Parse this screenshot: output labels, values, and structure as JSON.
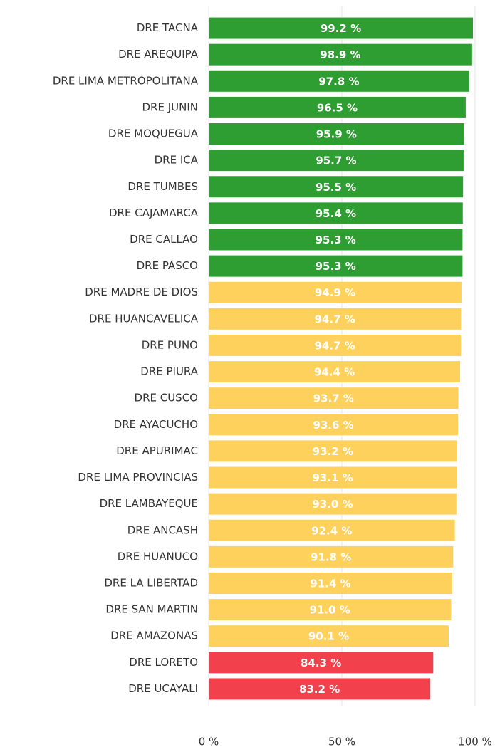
{
  "chart_data": {
    "type": "barh",
    "categories": [
      "DRE TACNA",
      "DRE AREQUIPA",
      "DRE LIMA METROPOLITANA",
      "DRE JUNIN",
      "DRE MOQUEGUA",
      "DRE ICA",
      "DRE TUMBES",
      "DRE CAJAMARCA",
      "DRE CALLAO",
      "DRE PASCO",
      "DRE MADRE DE DIOS",
      "DRE HUANCAVELICA",
      "DRE PUNO",
      "DRE PIURA",
      "DRE CUSCO",
      "DRE AYACUCHO",
      "DRE APURIMAC",
      "DRE LIMA PROVINCIAS",
      "DRE LAMBAYEQUE",
      "DRE ANCASH",
      "DRE HUANUCO",
      "DRE LA LIBERTAD",
      "DRE SAN MARTIN",
      "DRE AMAZONAS",
      "DRE LORETO",
      "DRE UCAYALI"
    ],
    "values": [
      99.2,
      98.9,
      97.8,
      96.5,
      95.9,
      95.7,
      95.5,
      95.4,
      95.3,
      95.3,
      94.9,
      94.7,
      94.7,
      94.4,
      93.7,
      93.6,
      93.2,
      93.1,
      93.0,
      92.4,
      91.8,
      91.4,
      91.0,
      90.1,
      84.3,
      83.2
    ],
    "value_labels": [
      "99.2 %",
      "98.9 %",
      "97.8 %",
      "96.5 %",
      "95.9 %",
      "95.7 %",
      "95.5 %",
      "95.4 %",
      "95.3 %",
      "95.3 %",
      "94.9 %",
      "94.7 %",
      "94.7 %",
      "94.4 %",
      "93.7 %",
      "93.6 %",
      "93.2 %",
      "93.1 %",
      "93.0 %",
      "92.4 %",
      "91.8 %",
      "91.4 %",
      "91.0 %",
      "90.1 %",
      "84.3 %",
      "83.2 %"
    ],
    "colors": [
      "#2e9e33",
      "#2e9e33",
      "#2e9e33",
      "#2e9e33",
      "#2e9e33",
      "#2e9e33",
      "#2e9e33",
      "#2e9e33",
      "#2e9e33",
      "#2e9e33",
      "#fdd15c",
      "#fdd15c",
      "#fdd15c",
      "#fdd15c",
      "#fdd15c",
      "#fdd15c",
      "#fdd15c",
      "#fdd15c",
      "#fdd15c",
      "#fdd15c",
      "#fdd15c",
      "#fdd15c",
      "#fdd15c",
      "#fdd15c",
      "#f2404d",
      "#f2404d"
    ],
    "xlim": [
      0,
      100
    ],
    "xticks": [
      {
        "value": 0,
        "label": "0 %"
      },
      {
        "value": 50,
        "label": "50 %"
      },
      {
        "value": 100,
        "label": "100 %"
      }
    ],
    "grid": true
  }
}
